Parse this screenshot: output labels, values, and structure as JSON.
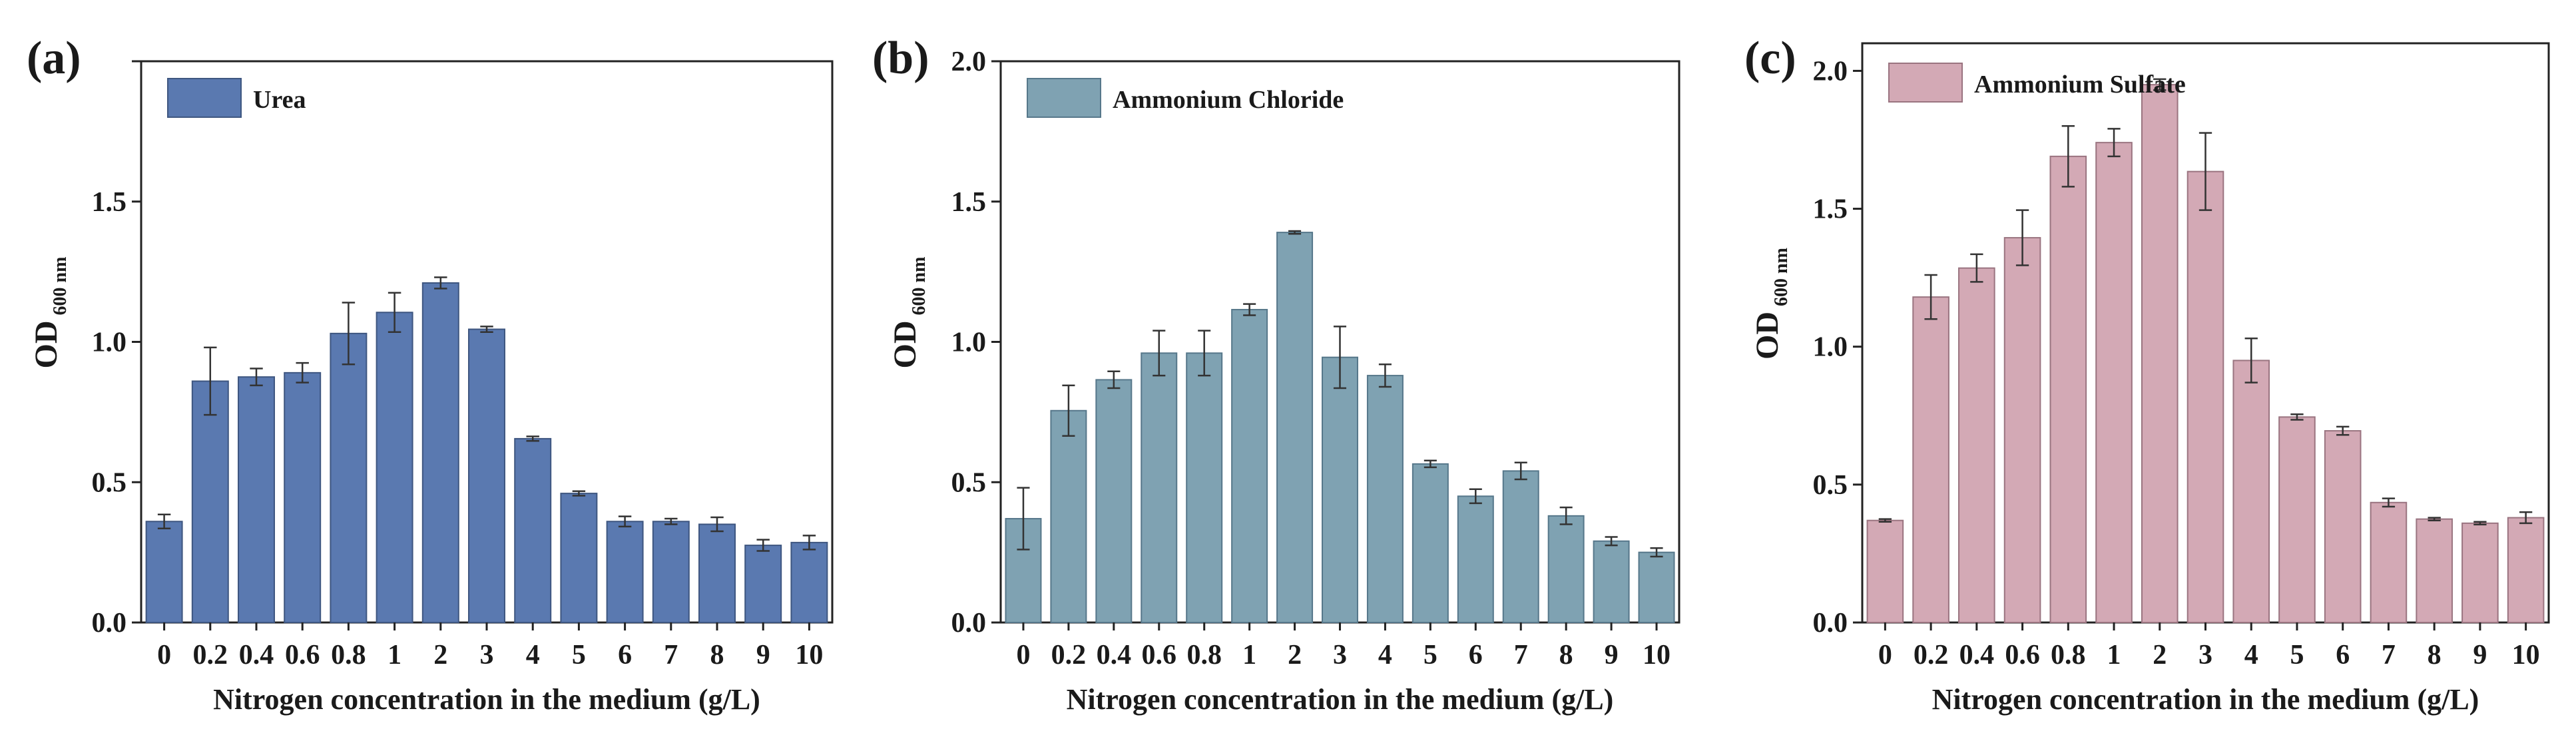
{
  "figure": {
    "panels": [
      {
        "letter": "(a)",
        "legend": "Urea",
        "bar_color": "#5a79b0",
        "bar_edge": "#3e5680"
      },
      {
        "letter": "(b)",
        "legend": "Ammonium Chloride",
        "bar_color": "#7fa2b2",
        "bar_edge": "#56778a"
      },
      {
        "letter": "(c)",
        "legend": "Ammonium Sulfate",
        "bar_color": "#d3a9b5",
        "bar_edge": "#9a7480"
      }
    ]
  },
  "chart_data": [
    {
      "type": "bar",
      "title": "(a)",
      "legend": [
        "Urea"
      ],
      "xlabel": "Nitrogen concentration in the medium (g/L)",
      "ylabel_main": "OD",
      "ylabel_sub": "600 nm",
      "categories": [
        "0",
        "0.2",
        "0.4",
        "0.6",
        "0.8",
        "1",
        "2",
        "3",
        "4",
        "5",
        "6",
        "7",
        "8",
        "9",
        "10"
      ],
      "values": [
        0.36,
        0.86,
        0.875,
        0.89,
        1.03,
        1.105,
        1.21,
        1.045,
        0.655,
        0.46,
        0.36,
        0.36,
        0.35,
        0.275,
        0.285
      ],
      "errors": [
        0.025,
        0.12,
        0.03,
        0.035,
        0.11,
        0.07,
        0.02,
        0.01,
        0.008,
        0.008,
        0.018,
        0.01,
        0.025,
        0.02,
        0.025
      ],
      "ylim": [
        0,
        2.0
      ],
      "yticks": [
        "0.0",
        "0.5",
        "1.0",
        "1.5",
        ""
      ],
      "ytick_values": [
        0,
        0.5,
        1.0,
        1.5,
        2.0
      ]
    },
    {
      "type": "bar",
      "title": "(b)",
      "legend": [
        "Ammonium Chloride"
      ],
      "xlabel": "Nitrogen concentration in the medium (g/L)",
      "ylabel_main": "OD",
      "ylabel_sub": "600 nm",
      "categories": [
        "0",
        "0.2",
        "0.4",
        "0.6",
        "0.8",
        "1",
        "2",
        "3",
        "4",
        "5",
        "6",
        "7",
        "8",
        "9",
        "10"
      ],
      "values": [
        0.37,
        0.755,
        0.865,
        0.96,
        0.96,
        1.115,
        1.39,
        0.945,
        0.88,
        0.565,
        0.45,
        0.54,
        0.38,
        0.29,
        0.25
      ],
      "errors": [
        0.11,
        0.09,
        0.03,
        0.08,
        0.08,
        0.02,
        0.005,
        0.11,
        0.04,
        0.012,
        0.025,
        0.03,
        0.03,
        0.015,
        0.015
      ],
      "ylim": [
        0,
        2.0
      ],
      "yticks": [
        "0.0",
        "0.5",
        "1.0",
        "1.5",
        "2.0"
      ],
      "ytick_values": [
        0,
        0.5,
        1.0,
        1.5,
        2.0
      ]
    },
    {
      "type": "bar",
      "title": "(c)",
      "legend": [
        "Ammonium Sulfate"
      ],
      "xlabel": "Nitrogen concentration in the medium (g/L)",
      "ylabel_main": "OD",
      "ylabel_sub": "600 nm",
      "categories": [
        "0",
        "0.2",
        "0.4",
        "0.6",
        "0.8",
        "1",
        "2",
        "3",
        "4",
        "5",
        "6",
        "7",
        "8",
        "9",
        "10"
      ],
      "values": [
        0.37,
        1.18,
        1.285,
        1.395,
        1.69,
        1.74,
        1.95,
        1.635,
        0.95,
        0.745,
        0.695,
        0.435,
        0.375,
        0.36,
        0.38
      ],
      "errors": [
        0.005,
        0.08,
        0.05,
        0.1,
        0.11,
        0.05,
        0.02,
        0.14,
        0.08,
        0.01,
        0.015,
        0.015,
        0.005,
        0.005,
        0.02
      ],
      "ylim": [
        0,
        2.1
      ],
      "yticks": [
        "0.0",
        "0.5",
        "1.0",
        "1.5",
        "2.0"
      ],
      "ytick_values": [
        0,
        0.5,
        1.0,
        1.5,
        2.0
      ]
    }
  ]
}
